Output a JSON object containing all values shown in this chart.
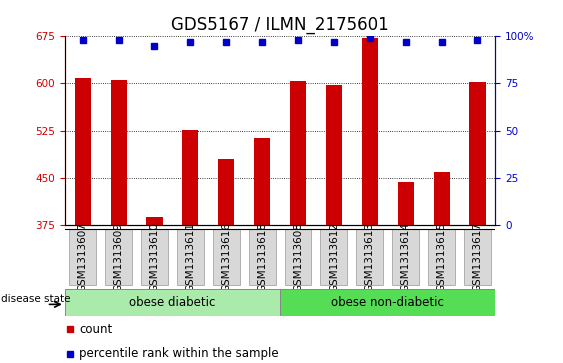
{
  "title": "GDS5167 / ILMN_2175601",
  "samples": [
    "GSM1313607",
    "GSM1313609",
    "GSM1313610",
    "GSM1313611",
    "GSM1313616",
    "GSM1313618",
    "GSM1313608",
    "GSM1313612",
    "GSM1313613",
    "GSM1313614",
    "GSM1313615",
    "GSM1313617"
  ],
  "counts": [
    608,
    605,
    388,
    526,
    480,
    514,
    604,
    598,
    672,
    443,
    460,
    603
  ],
  "percentiles": [
    98,
    98,
    95,
    97,
    97,
    97,
    98,
    97,
    99,
    97,
    97,
    98
  ],
  "ylim_left": [
    375,
    675
  ],
  "yticks_left": [
    375,
    450,
    525,
    600,
    675
  ],
  "ylim_right": [
    0,
    100
  ],
  "yticks_right": [
    0,
    25,
    50,
    75,
    100
  ],
  "bar_color": "#cc0000",
  "dot_color": "#0000cc",
  "bar_width": 0.45,
  "group1_label": "obese diabetic",
  "group2_label": "obese non-diabetic",
  "group1_count": 6,
  "group2_count": 6,
  "disease_label": "disease state",
  "legend_count_label": "count",
  "legend_pct_label": "percentile rank within the sample",
  "group_color1": "#aaeaaa",
  "group_color2": "#55dd55",
  "tick_fontsize": 7.5,
  "label_fontsize": 8.5,
  "title_fontsize": 12
}
